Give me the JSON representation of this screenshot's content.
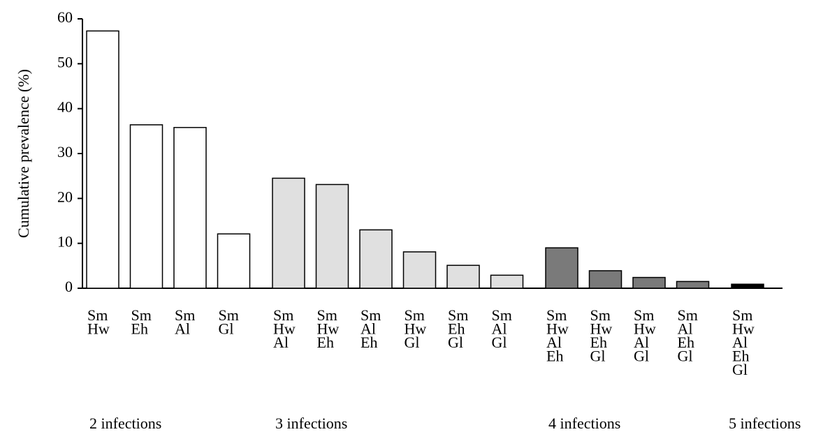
{
  "chart_data": {
    "type": "bar",
    "ylabel": "Cumulative prevalence (%)",
    "ylim": [
      0,
      60
    ],
    "yticks": [
      0,
      10,
      20,
      30,
      40,
      50,
      60
    ],
    "groups": [
      {
        "name": "2 infections",
        "color": "#ffffff",
        "categories": [
          [
            "Sm",
            "Hw"
          ],
          [
            "Sm",
            "Eh"
          ],
          [
            "Sm",
            "Al"
          ],
          [
            "Sm",
            "Gl"
          ]
        ],
        "values": [
          57.3,
          36.4,
          35.8,
          12.1
        ]
      },
      {
        "name": "3 infections",
        "color": "#e0e0e0",
        "categories": [
          [
            "Sm",
            "Hw",
            "Al"
          ],
          [
            "Sm",
            "Hw",
            "Eh"
          ],
          [
            "Sm",
            "Al",
            "Eh"
          ],
          [
            "Sm",
            "Hw",
            "Gl"
          ],
          [
            "Sm",
            "Eh",
            "Gl"
          ],
          [
            "Sm",
            "Al",
            "Gl"
          ]
        ],
        "values": [
          24.5,
          23.1,
          13.0,
          8.1,
          5.1,
          2.9
        ]
      },
      {
        "name": "4 infections",
        "color": "#7a7a7a",
        "categories": [
          [
            "Sm",
            "Hw",
            "Al",
            "Eh"
          ],
          [
            "Sm",
            "Hw",
            "Eh",
            "Gl"
          ],
          [
            "Sm",
            "Hw",
            "Al",
            "Gl"
          ],
          [
            "Sm",
            "Al",
            "Eh",
            "Gl"
          ]
        ],
        "values": [
          9.0,
          3.9,
          2.4,
          1.5
        ]
      },
      {
        "name": "5 infections",
        "color": "#000000",
        "categories": [
          [
            "Sm",
            "Hw",
            "Al",
            "Eh",
            "Gl"
          ]
        ],
        "values": [
          0.9
        ]
      }
    ]
  }
}
